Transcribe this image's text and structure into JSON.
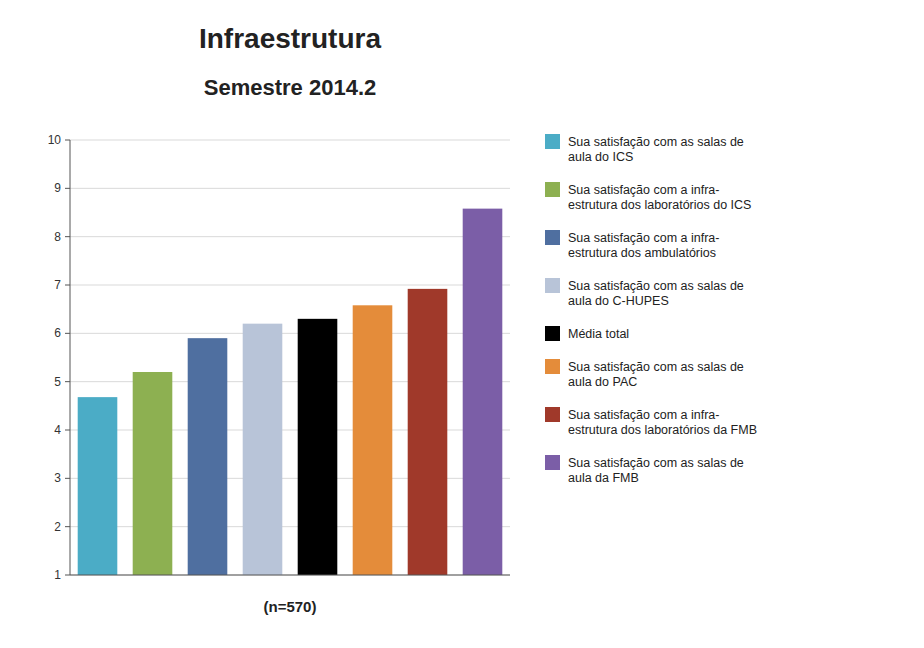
{
  "chart_data": {
    "type": "bar",
    "title": "Infraestrutura",
    "subtitle": "Semestre 2014.2",
    "xlabel": "(n=570)",
    "categories": [
      "Sua satisfação com as salas de\naula do ICS",
      "Sua satisfação com a infra-\nestrutura dos laboratórios do ICS",
      "Sua satisfação com a infra-\nestrutura dos ambulatórios",
      "Sua satisfação com as salas de\naula do C-HUPES",
      "Média total",
      "Sua satisfação com as salas de\naula do PAC",
      "Sua satisfação com a infra-\nestrutura dos laboratórios da FMB",
      "Sua satisfação com as salas de\naula da FMB"
    ],
    "values": [
      4.68,
      5.2,
      5.9,
      6.2,
      6.3,
      6.58,
      6.92,
      8.58
    ],
    "colors": [
      "#4BACC6",
      "#8DB051",
      "#4F6FA0",
      "#B8C4D8",
      "#000000",
      "#E48C3A",
      "#A0392A",
      "#7B5EA7"
    ],
    "ylim": [
      1,
      10
    ],
    "yticks": [
      1,
      2,
      3,
      4,
      5,
      6,
      7,
      8,
      9,
      10
    ],
    "grid": true,
    "legend": "right",
    "tick_labels": "y"
  }
}
